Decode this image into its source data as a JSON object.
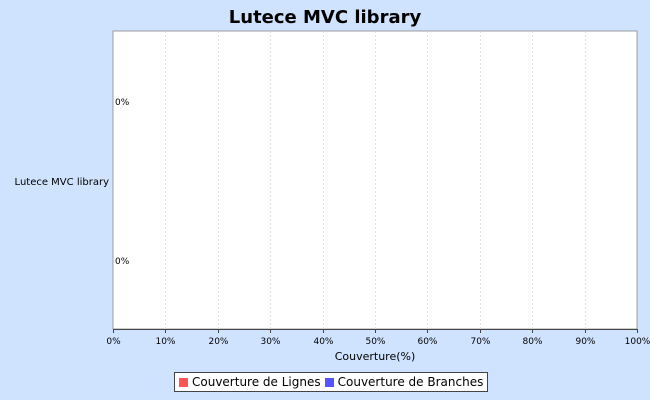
{
  "chart_data": {
    "type": "bar",
    "orientation": "horizontal",
    "title": "Lutece MVC library",
    "categories": [
      "Lutece MVC library"
    ],
    "series": [
      {
        "name": "Couverture de Lignes",
        "values": [
          0
        ],
        "color": "#ff5555",
        "label": "0%"
      },
      {
        "name": "Couverture de Branches",
        "values": [
          0
        ],
        "color": "#5555ff",
        "label": "0%"
      }
    ],
    "xlabel": "Couverture(%)",
    "ylabel": "",
    "xlim": [
      0,
      100
    ],
    "x_ticks": [
      "0%",
      "10%",
      "20%",
      "30%",
      "40%",
      "50%",
      "60%",
      "70%",
      "80%",
      "90%",
      "100%"
    ],
    "grid": true,
    "legend_position": "bottom"
  }
}
